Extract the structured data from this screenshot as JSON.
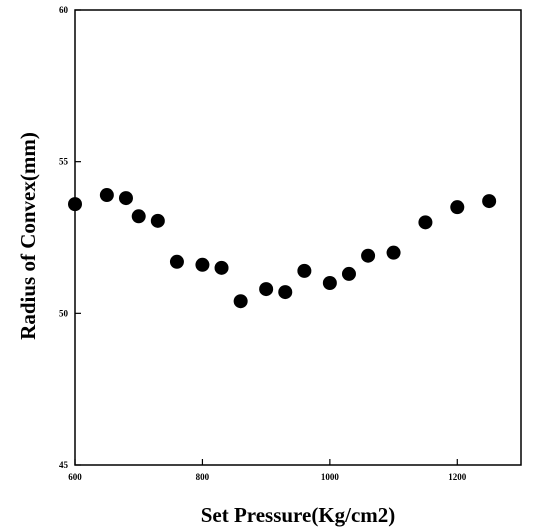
{
  "chart_data": {
    "type": "scatter",
    "title": "",
    "xlabel": "Set Pressure(Kg/cm2)",
    "ylabel": "Radius of Convex(mm)",
    "xlim": [
      600,
      1300
    ],
    "ylim": [
      45,
      60
    ],
    "xticks": [
      600,
      800,
      1000,
      1200
    ],
    "yticks": [
      45,
      50,
      55,
      60
    ],
    "xtick_labels": [
      "600",
      "800",
      "1000",
      "1200"
    ],
    "ytick_labels": [
      "45",
      "50",
      "55",
      "60"
    ],
    "grid": false,
    "legend": "none",
    "marker_color": "#000000",
    "series": [
      {
        "points": [
          {
            "x": 600,
            "y": 53.6
          },
          {
            "x": 650,
            "y": 53.9
          },
          {
            "x": 680,
            "y": 53.8
          },
          {
            "x": 700,
            "y": 53.2
          },
          {
            "x": 730,
            "y": 53.05
          },
          {
            "x": 760,
            "y": 51.7
          },
          {
            "x": 800,
            "y": 51.6
          },
          {
            "x": 830,
            "y": 51.5
          },
          {
            "x": 860,
            "y": 50.4
          },
          {
            "x": 900,
            "y": 50.8
          },
          {
            "x": 930,
            "y": 50.7
          },
          {
            "x": 960,
            "y": 51.4
          },
          {
            "x": 1000,
            "y": 51.0
          },
          {
            "x": 1030,
            "y": 51.3
          },
          {
            "x": 1060,
            "y": 51.9
          },
          {
            "x": 1100,
            "y": 52.0
          },
          {
            "x": 1150,
            "y": 53.0
          },
          {
            "x": 1200,
            "y": 53.5
          },
          {
            "x": 1250,
            "y": 53.7
          }
        ]
      }
    ]
  }
}
